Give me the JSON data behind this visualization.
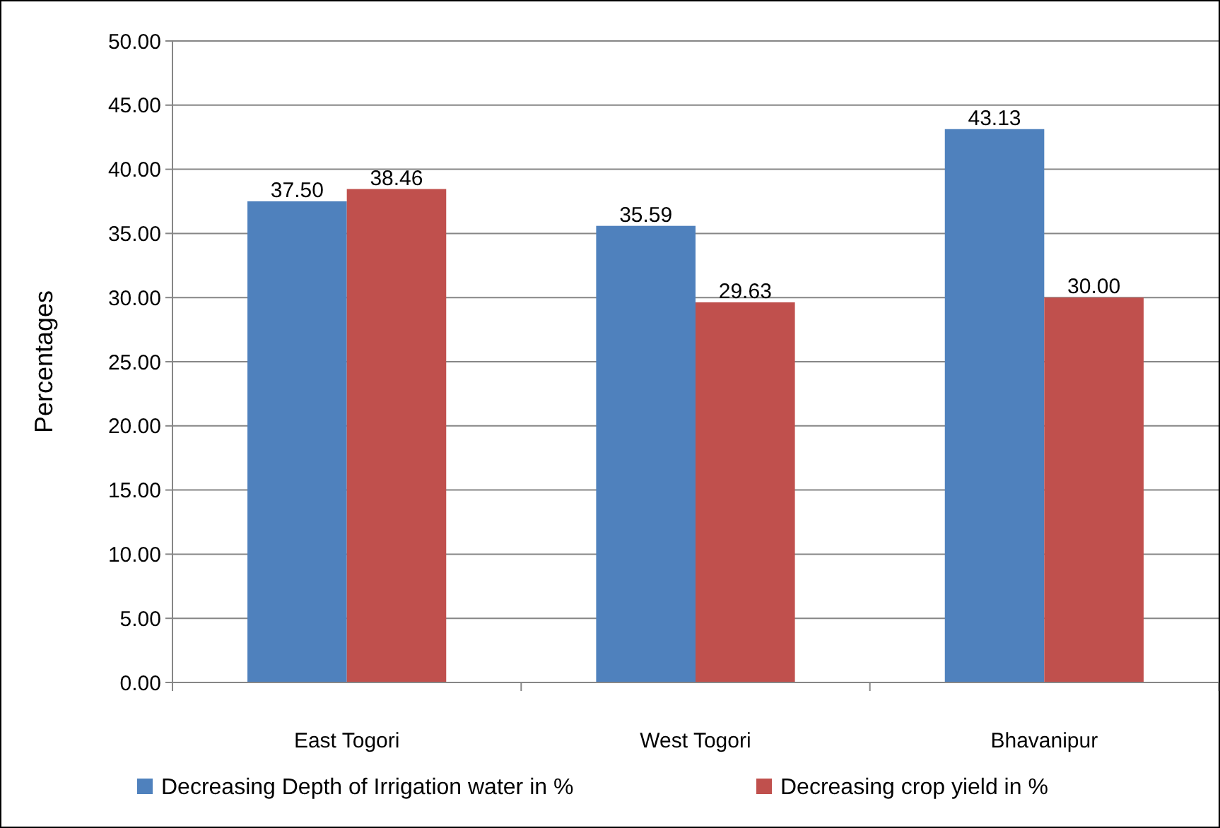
{
  "chart_data": {
    "type": "bar",
    "ylabel": "Percentages",
    "categories": [
      "East Togori",
      "West Togori",
      "Bhavanipur"
    ],
    "series": [
      {
        "name": "Decreasing Depth of Irrigation water in %",
        "color": "#4f81bd",
        "values": [
          37.5,
          35.59,
          43.13
        ],
        "value_labels": [
          "37.50",
          "35.59",
          "43.13"
        ]
      },
      {
        "name": "Decreasing crop yield in %",
        "color": "#c0504d",
        "values": [
          38.46,
          29.63,
          30.0
        ],
        "value_labels": [
          "38.46",
          "29.63",
          "30.00"
        ]
      }
    ],
    "ylim": [
      0,
      50
    ],
    "yticks": [
      {
        "value": 0,
        "label": "0.00"
      },
      {
        "value": 5,
        "label": "5.00"
      },
      {
        "value": 10,
        "label": "10.00"
      },
      {
        "value": 15,
        "label": "15.00"
      },
      {
        "value": 20,
        "label": "20.00"
      },
      {
        "value": 25,
        "label": "25.00"
      },
      {
        "value": 30,
        "label": "30.00"
      },
      {
        "value": 35,
        "label": "35.00"
      },
      {
        "value": 40,
        "label": "40.00"
      },
      {
        "value": 45,
        "label": "45.00"
      },
      {
        "value": 50,
        "label": "50.00"
      }
    ],
    "grid": "y",
    "legend": "bottom"
  }
}
